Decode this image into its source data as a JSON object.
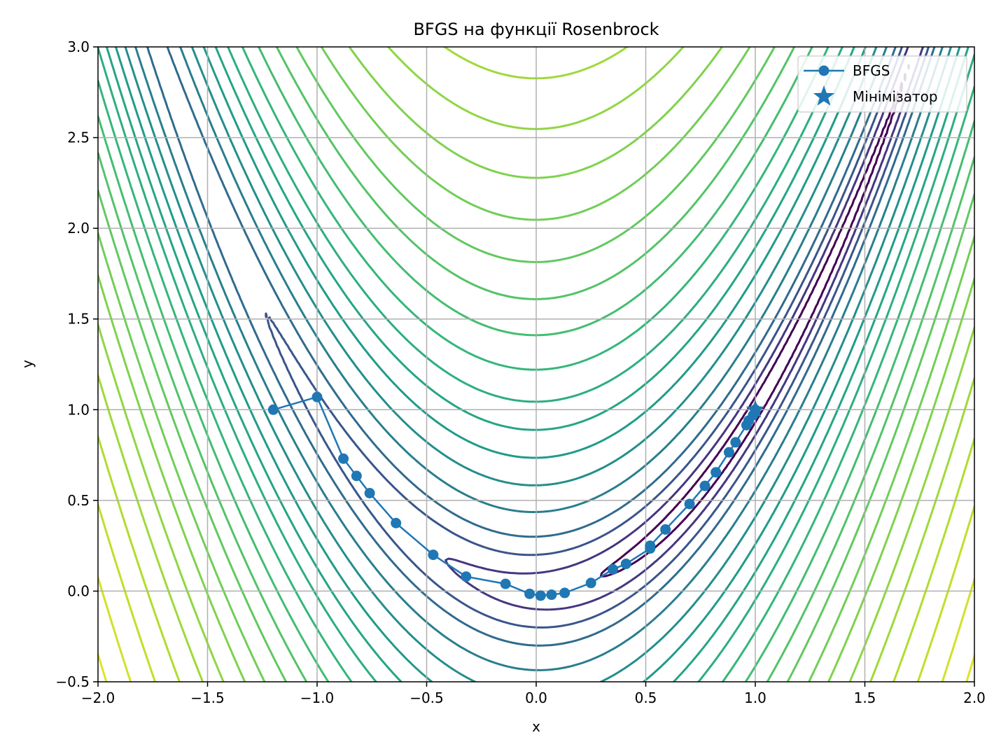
{
  "chart_data": {
    "type": "line",
    "title": "BFGS на функції Rosenbrock",
    "xlabel": "x",
    "ylabel": "y",
    "xlim": [
      -2.0,
      2.0
    ],
    "ylim": [
      -0.5,
      3.0
    ],
    "grid": true,
    "legend_position": "top-right",
    "x_tick_labels": [
      "−2.0",
      "−1.5",
      "−1.0",
      "−0.5",
      "0.0",
      "0.5",
      "1.0",
      "1.5",
      "2.0"
    ],
    "x_tick_values": [
      -2.0,
      -1.5,
      -1.0,
      -0.5,
      0.0,
      0.5,
      1.0,
      1.5,
      2.0
    ],
    "y_tick_labels": [
      "−0.5",
      "0.0",
      "0.5",
      "1.0",
      "1.5",
      "2.0",
      "2.5",
      "3.0"
    ],
    "y_tick_values": [
      -0.5,
      0.0,
      0.5,
      1.0,
      1.5,
      2.0,
      2.5,
      3.0
    ],
    "contour": {
      "function": "rosenbrock",
      "levels": [
        0.5,
        2,
        5,
        10,
        20,
        35,
        55,
        80,
        110,
        150,
        200,
        260,
        330,
        420,
        520,
        650,
        800,
        1000,
        1250,
        1550,
        1900,
        2300,
        2800
      ],
      "colormap": [
        "#440154",
        "#482878",
        "#3e4989",
        "#31688e",
        "#26828e",
        "#1f9e89",
        "#35b779",
        "#6ece58",
        "#b5de2b",
        "#fde725"
      ]
    },
    "series": [
      {
        "name": "BFGS",
        "color": "#1f77b4",
        "marker": "circle",
        "x": [
          -1.2,
          -1.0,
          -0.88,
          -0.82,
          -0.76,
          -0.64,
          -0.47,
          -0.32,
          -0.14,
          -0.03,
          0.02,
          0.07,
          0.13,
          0.25,
          0.35,
          0.41,
          0.52,
          0.52,
          0.59,
          0.7,
          0.77,
          0.82,
          0.88,
          0.91,
          0.96,
          0.97,
          0.99,
          1.0,
          1.0
        ],
        "y": [
          1.0,
          1.07,
          0.73,
          0.635,
          0.54,
          0.375,
          0.2,
          0.08,
          0.04,
          -0.015,
          -0.025,
          -0.02,
          -0.01,
          0.045,
          0.12,
          0.15,
          0.235,
          0.25,
          0.34,
          0.48,
          0.58,
          0.655,
          0.765,
          0.82,
          0.915,
          0.94,
          0.97,
          0.99,
          1.0
        ]
      },
      {
        "name": "Мінімізатор",
        "color": "#1f77b4",
        "marker": "star",
        "x": [
          1.0
        ],
        "y": [
          1.0
        ]
      }
    ]
  }
}
